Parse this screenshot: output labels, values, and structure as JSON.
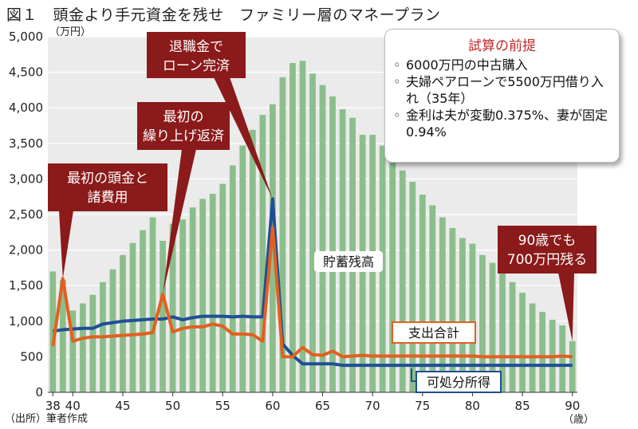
{
  "title": "図１　頭金より手元資金を残せ　ファミリー層のマネープラン",
  "source": "（出所）筆者作成",
  "premise": {
    "title": "試算の前提",
    "items": [
      "6000万円の中古購入",
      "夫婦ペアローンで5500万円借り入れ（35年）",
      "金利は夫が変動0.375%、妻が固定0.94%"
    ]
  },
  "colors": {
    "bars": "#8cbe8c",
    "expense": "#e2601f",
    "disposable": "#1f4f96",
    "callout": "#8b1a1a",
    "plot_bg": "#ebebeb"
  },
  "chart_data": {
    "type": "bar",
    "title": "図１　頭金より手元資金を残せ　ファミリー層のマネープラン",
    "y_unit_label": "（万円）",
    "x_unit_label": "（歳）",
    "ylim": [
      0,
      5000
    ],
    "xlim": [
      38,
      90
    ],
    "y_ticks": [
      "0",
      "500",
      "1,000",
      "1,500",
      "2,000",
      "2,500",
      "3,000",
      "3,500",
      "4,000",
      "4,500",
      "5,000"
    ],
    "x_ticks": [
      "38",
      "40",
      "45",
      "50",
      "55",
      "60",
      "65",
      "70",
      "75",
      "80",
      "85",
      "90"
    ],
    "grid": true,
    "ages": [
      38,
      39,
      40,
      41,
      42,
      43,
      44,
      45,
      46,
      47,
      48,
      49,
      50,
      51,
      52,
      53,
      54,
      55,
      56,
      57,
      58,
      59,
      60,
      61,
      62,
      63,
      64,
      65,
      66,
      67,
      68,
      69,
      70,
      71,
      72,
      73,
      74,
      75,
      76,
      77,
      78,
      79,
      80,
      81,
      82,
      83,
      84,
      85,
      86,
      87,
      88,
      89,
      90
    ],
    "bar_series": {
      "name": "貯蓄残高",
      "values": [
        1700,
        1580,
        1150,
        1250,
        1370,
        1550,
        1730,
        1930,
        2100,
        2280,
        2460,
        2130,
        2370,
        2430,
        2600,
        2720,
        2790,
        2930,
        3190,
        3470,
        3690,
        3900,
        4050,
        4430,
        4630,
        4660,
        4480,
        4320,
        4160,
        3980,
        3860,
        3620,
        3620,
        3470,
        3280,
        3120,
        2960,
        2780,
        2630,
        2460,
        2310,
        2170,
        2090,
        1930,
        1820,
        1720,
        1550,
        1400,
        1250,
        1130,
        1020,
        940,
        720
      ]
    },
    "line_series": [
      {
        "name": "支出合計",
        "values": [
          650,
          1600,
          720,
          760,
          780,
          780,
          790,
          800,
          810,
          820,
          840,
          1380,
          850,
          900,
          920,
          920,
          960,
          930,
          820,
          820,
          810,
          720,
          2320,
          500,
          500,
          630,
          530,
          520,
          580,
          500,
          510,
          520,
          510,
          510,
          510,
          510,
          510,
          510,
          510,
          510,
          510,
          510,
          510,
          500,
          500,
          500,
          500,
          500,
          500,
          500,
          500,
          510,
          500
        ]
      },
      {
        "name": "可処分所得",
        "values": [
          860,
          880,
          890,
          900,
          900,
          960,
          980,
          1000,
          1010,
          1020,
          1030,
          1030,
          1060,
          1020,
          1050,
          1070,
          1070,
          1070,
          1060,
          1070,
          1060,
          1060,
          2720,
          680,
          520,
          400,
          400,
          400,
          400,
          380,
          380,
          380,
          380,
          380,
          380,
          380,
          380,
          380,
          380,
          380,
          380,
          380,
          380,
          380,
          380,
          380,
          380,
          380,
          380,
          380,
          380,
          380,
          380
        ]
      }
    ],
    "annotations": [
      {
        "text": "最初の頭金と\n諸費用",
        "age": 39
      },
      {
        "text": "最初の\n繰り上げ返済",
        "age": 49
      },
      {
        "text": "退職金で\nローン完済",
        "age": 60
      },
      {
        "text": "90歳でも\n700万円残る",
        "age": 90
      }
    ]
  }
}
